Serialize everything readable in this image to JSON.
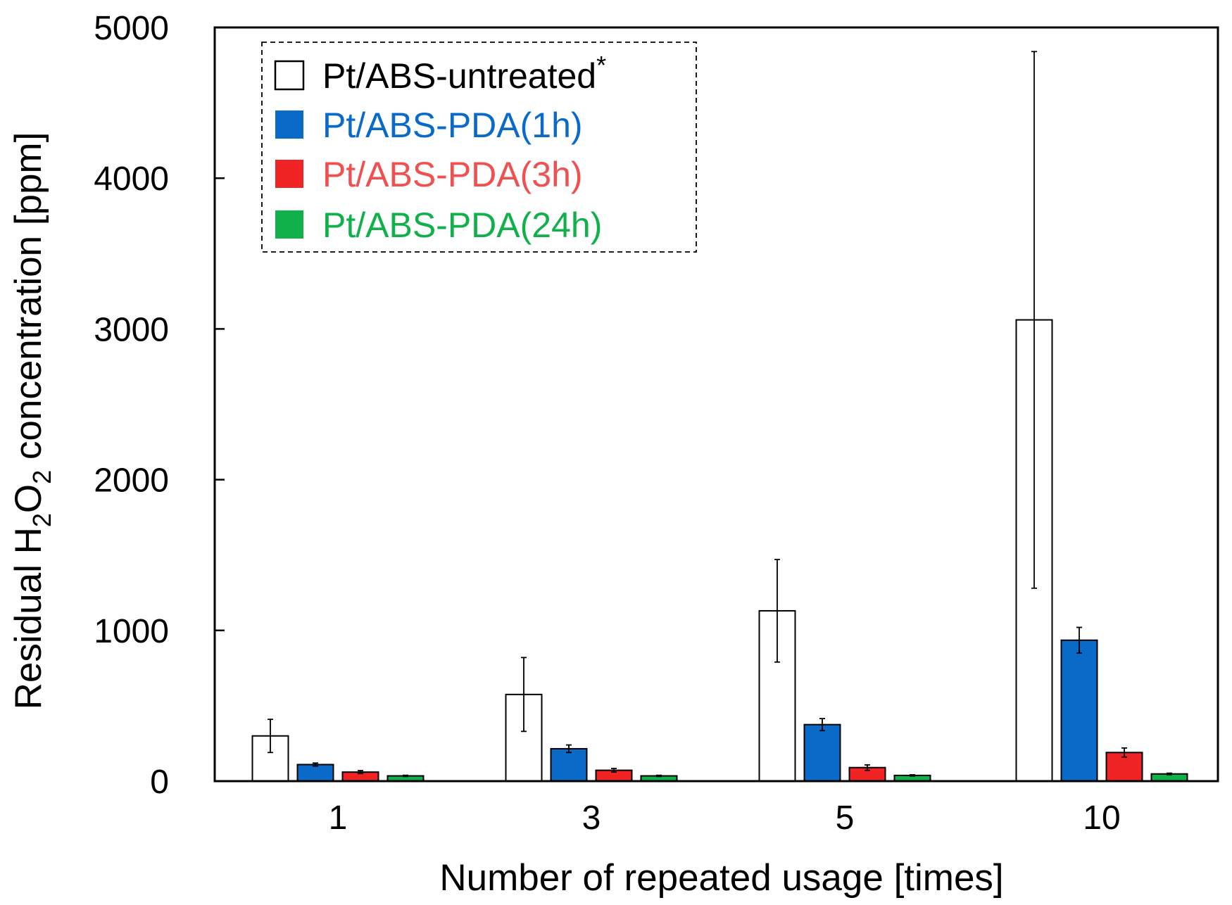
{
  "chart_data": {
    "type": "bar",
    "xlabel": "Number of repeated usage [times]",
    "ylabel": {
      "prefix": "Residual H",
      "sub1": "2",
      "mid": "O",
      "sub2": "2",
      "suffix": " concentration [ppm]"
    },
    "ylim": [
      0,
      5000
    ],
    "yticks": [
      0,
      1000,
      2000,
      3000,
      4000,
      5000
    ],
    "categories": [
      "1",
      "3",
      "5",
      "10"
    ],
    "series": [
      {
        "name": "Pt/ABS-untreated",
        "superscript": "*",
        "fill": "#ffffff",
        "text_color": "#000000",
        "values": [
          300,
          575,
          1130,
          3060
        ],
        "errors": [
          110,
          245,
          340,
          1780
        ]
      },
      {
        "name": "Pt/ABS-PDA(1h)",
        "fill": "#0a6ac8",
        "text_color": "#0a6ac8",
        "values": [
          110,
          215,
          375,
          935
        ],
        "errors": [
          10,
          25,
          40,
          85
        ]
      },
      {
        "name": "Pt/ABS-PDA(3h)",
        "fill": "#f02424",
        "text_color": "#f05050",
        "values": [
          60,
          72,
          90,
          190
        ],
        "errors": [
          10,
          12,
          18,
          30
        ]
      },
      {
        "name": "Pt/ABS-PDA(24h)",
        "fill": "#10b04a",
        "text_color": "#10b04a",
        "values": [
          35,
          35,
          38,
          48
        ],
        "errors": [
          4,
          4,
          4,
          5
        ]
      }
    ],
    "legend_position": "top-left"
  }
}
